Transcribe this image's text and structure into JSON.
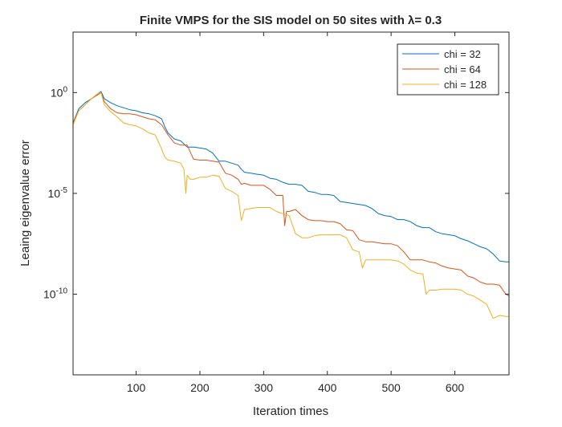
{
  "chart_data": {
    "type": "line",
    "title": "Finite VMPS for the SIS model on 50 sites with λ= 0.3",
    "xlabel": "Iteration times",
    "ylabel": "Leaing eigenvalue error",
    "xlim": [
      1,
      685
    ],
    "ylim_log10": [
      -14,
      3
    ],
    "yscale": "log",
    "grid": false,
    "legend_position": "top-right",
    "xticks": [
      100,
      200,
      300,
      400,
      500,
      600
    ],
    "xtick_labels": [
      "100",
      "200",
      "300",
      "400",
      "500",
      "600"
    ],
    "yticks_log10": [
      0,
      -5,
      -10
    ],
    "ytick_labels": [
      {
        "base": "10",
        "exp": "0"
      },
      {
        "base": "10",
        "exp": "-5"
      },
      {
        "base": "10",
        "exp": "-10"
      }
    ],
    "series": [
      {
        "name": "chi = 32",
        "color": "#0072BD",
        "x": [
          1,
          10,
          20,
          30,
          40,
          45,
          50,
          60,
          70,
          80,
          90,
          100,
          110,
          120,
          130,
          140,
          145,
          150,
          160,
          170,
          180,
          190,
          200,
          210,
          220,
          230,
          240,
          250,
          260,
          265,
          270,
          280,
          290,
          300,
          310,
          320,
          330,
          340,
          350,
          360,
          370,
          380,
          390,
          400,
          410,
          420,
          430,
          440,
          450,
          460,
          470,
          480,
          490,
          500,
          510,
          520,
          530,
          540,
          550,
          560,
          570,
          580,
          590,
          600,
          610,
          620,
          630,
          640,
          650,
          660,
          670,
          680,
          685
        ],
        "log10_y": [
          -1.5,
          -0.8,
          -0.5,
          -0.3,
          -0.05,
          0.05,
          -0.3,
          -0.5,
          -0.65,
          -0.75,
          -0.85,
          -0.9,
          -1.0,
          -1.05,
          -1.15,
          -1.3,
          -1.7,
          -2.0,
          -2.3,
          -2.4,
          -2.7,
          -2.7,
          -2.75,
          -2.8,
          -3.0,
          -3.4,
          -3.4,
          -3.5,
          -3.6,
          -3.8,
          -3.95,
          -4.0,
          -4.05,
          -4.1,
          -4.25,
          -4.3,
          -4.45,
          -4.55,
          -4.55,
          -4.6,
          -4.9,
          -4.95,
          -5.05,
          -5.05,
          -5.1,
          -5.4,
          -5.45,
          -5.5,
          -5.55,
          -5.6,
          -5.75,
          -6.0,
          -6.1,
          -6.15,
          -6.3,
          -6.3,
          -6.4,
          -6.6,
          -6.7,
          -6.7,
          -6.9,
          -7.0,
          -7.05,
          -7.1,
          -7.25,
          -7.35,
          -7.5,
          -7.65,
          -7.75,
          -8.0,
          -8.35,
          -8.4,
          -8.4
        ]
      },
      {
        "name": "chi = 64",
        "color": "#D95319",
        "x": [
          1,
          10,
          20,
          30,
          40,
          45,
          50,
          60,
          70,
          80,
          90,
          100,
          110,
          120,
          130,
          140,
          150,
          160,
          170,
          180,
          190,
          200,
          210,
          220,
          230,
          240,
          250,
          260,
          265,
          270,
          280,
          290,
          300,
          310,
          320,
          330,
          333,
          336,
          340,
          350,
          360,
          370,
          380,
          390,
          400,
          410,
          420,
          430,
          440,
          450,
          460,
          470,
          480,
          490,
          500,
          510,
          520,
          530,
          540,
          550,
          560,
          570,
          580,
          590,
          600,
          610,
          620,
          630,
          640,
          650,
          660,
          670,
          680,
          685
        ],
        "log10_y": [
          -1.5,
          -0.9,
          -0.6,
          -0.3,
          -0.1,
          0.0,
          -0.45,
          -0.8,
          -1.0,
          -1.05,
          -1.05,
          -1.1,
          -1.2,
          -1.3,
          -1.35,
          -1.6,
          -2.1,
          -2.5,
          -2.6,
          -2.6,
          -3.3,
          -3.35,
          -3.35,
          -3.4,
          -3.45,
          -4.0,
          -4.1,
          -4.3,
          -4.55,
          -4.5,
          -4.6,
          -4.6,
          -4.6,
          -4.8,
          -5.1,
          -5.1,
          -6.6,
          -5.9,
          -5.9,
          -5.8,
          -6.1,
          -6.3,
          -6.35,
          -6.35,
          -6.4,
          -6.4,
          -6.5,
          -6.8,
          -6.85,
          -7.3,
          -7.4,
          -7.4,
          -7.45,
          -7.5,
          -7.5,
          -7.6,
          -7.9,
          -8.3,
          -8.3,
          -8.3,
          -8.4,
          -8.45,
          -8.6,
          -8.7,
          -8.75,
          -8.8,
          -9.1,
          -9.2,
          -9.4,
          -9.5,
          -9.5,
          -9.55,
          -10.0,
          -10.1
        ]
      },
      {
        "name": "chi = 128",
        "color": "#EDB120",
        "x": [
          1,
          10,
          20,
          30,
          40,
          45,
          50,
          60,
          70,
          80,
          90,
          100,
          110,
          120,
          130,
          140,
          145,
          150,
          160,
          170,
          175,
          178,
          180,
          185,
          190,
          200,
          210,
          220,
          230,
          240,
          250,
          260,
          265,
          270,
          280,
          290,
          300,
          310,
          320,
          330,
          340,
          350,
          360,
          370,
          380,
          390,
          400,
          410,
          420,
          430,
          440,
          450,
          455,
          460,
          470,
          480,
          490,
          500,
          510,
          520,
          530,
          540,
          550,
          555,
          560,
          570,
          580,
          590,
          600,
          610,
          620,
          630,
          640,
          650,
          660,
          670,
          680,
          685
        ],
        "log10_y": [
          -1.6,
          -0.9,
          -0.6,
          -0.3,
          -0.05,
          0.0,
          -0.6,
          -0.95,
          -1.2,
          -1.5,
          -1.6,
          -1.65,
          -1.8,
          -2.0,
          -2.1,
          -2.8,
          -3.2,
          -3.35,
          -3.4,
          -3.5,
          -3.8,
          -5.0,
          -4.1,
          -4.3,
          -4.3,
          -4.2,
          -4.2,
          -4.1,
          -4.15,
          -4.75,
          -4.9,
          -5.1,
          -6.35,
          -5.8,
          -5.75,
          -5.7,
          -5.7,
          -5.7,
          -5.9,
          -6.0,
          -6.1,
          -7.0,
          -7.2,
          -7.2,
          -7.1,
          -7.05,
          -7.05,
          -7.05,
          -7.05,
          -7.2,
          -7.8,
          -7.9,
          -8.7,
          -8.3,
          -8.3,
          -8.3,
          -8.3,
          -8.3,
          -8.35,
          -8.5,
          -8.8,
          -8.95,
          -9.0,
          -10.0,
          -9.8,
          -9.8,
          -9.75,
          -9.75,
          -9.75,
          -9.8,
          -10.0,
          -10.1,
          -10.3,
          -10.5,
          -11.2,
          -11.05,
          -11.1,
          -11.1
        ]
      }
    ]
  }
}
